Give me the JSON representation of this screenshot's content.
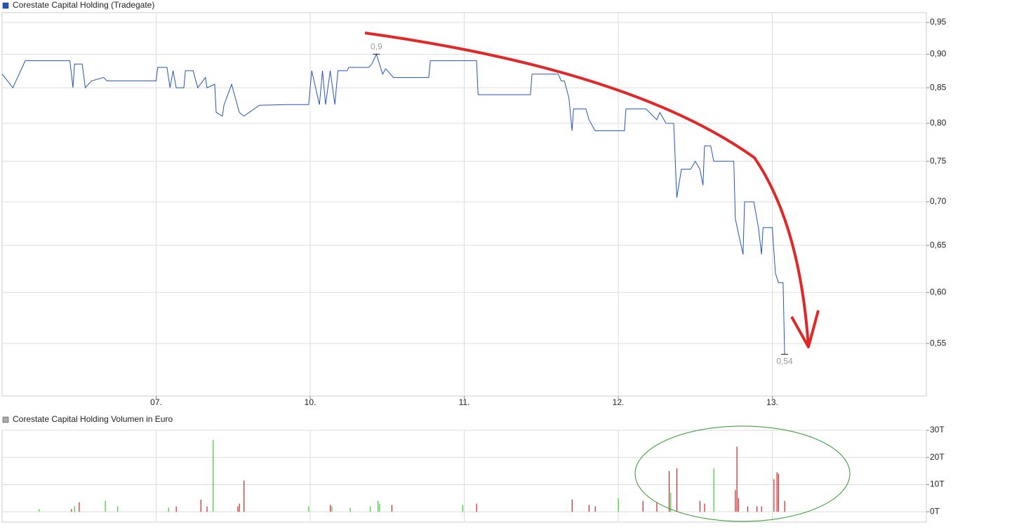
{
  "chart_data": [
    {
      "type": "line",
      "legend": "Corestate Capital Holding (Tradegate)",
      "log_scale": true,
      "grid": true,
      "xlim": [
        0,
        6
      ],
      "xticks": [
        {
          "value": 1,
          "label": "07."
        },
        {
          "value": 2,
          "label": "10."
        },
        {
          "value": 3,
          "label": "11."
        },
        {
          "value": 4,
          "label": "12."
        },
        {
          "value": 5,
          "label": "13."
        }
      ],
      "ylim": [
        0.503,
        0.966
      ],
      "yticks": [
        {
          "value": 0.55,
          "label": "0,55"
        },
        {
          "value": 0.6,
          "label": "0,60"
        },
        {
          "value": 0.65,
          "label": "0,65"
        },
        {
          "value": 0.7,
          "label": "0,70"
        },
        {
          "value": 0.75,
          "label": "0,75"
        },
        {
          "value": 0.8,
          "label": "0,80"
        },
        {
          "value": 0.85,
          "label": "0,85"
        },
        {
          "value": 0.9,
          "label": "0,90"
        },
        {
          "value": 0.95,
          "label": "0,95"
        }
      ],
      "max_label": "0,9",
      "min_label": "0,54",
      "series": [
        {
          "name": "Corestate Capital Holding (Tradegate)",
          "color": "#2256b8",
          "x": [
            0,
            0.07,
            0.15,
            0.44,
            0.46,
            0.47,
            0.52,
            0.54,
            0.58,
            0.66,
            0.68,
            1.0,
            1.01,
            1.07,
            1.09,
            1.11,
            1.13,
            1.18,
            1.19,
            1.24,
            1.27,
            1.32,
            1.33,
            1.38,
            1.39,
            1.43,
            1.44,
            1.49,
            1.54,
            1.57,
            1.67,
            1.85,
            1.99,
            2.01,
            2.06,
            2.08,
            2.1,
            2.13,
            2.16,
            2.18,
            2.24,
            2.25,
            2.38,
            2.4,
            2.43,
            2.47,
            2.49,
            2.54,
            2.77,
            2.78,
            3.08,
            3.09,
            3.43,
            3.44,
            3.61,
            3.63,
            3.65,
            3.68,
            3.7,
            3.71,
            3.79,
            3.81,
            3.85,
            4.04,
            4.05,
            4.18,
            4.25,
            4.27,
            4.31,
            4.36,
            4.38,
            4.41,
            4.47,
            4.5,
            4.53,
            4.55,
            4.56,
            4.6,
            4.62,
            4.75,
            4.76,
            4.81,
            4.82,
            4.88,
            4.91,
            4.93,
            4.94,
            5.0,
            5.02,
            5.04,
            5.07,
            5.08
          ],
          "values": [
            0.87,
            0.85,
            0.89,
            0.89,
            0.85,
            0.885,
            0.885,
            0.85,
            0.86,
            0.865,
            0.86,
            0.86,
            0.88,
            0.88,
            0.85,
            0.875,
            0.85,
            0.85,
            0.875,
            0.875,
            0.85,
            0.865,
            0.85,
            0.855,
            0.815,
            0.81,
            0.825,
            0.855,
            0.815,
            0.81,
            0.825,
            0.826,
            0.826,
            0.875,
            0.826,
            0.875,
            0.826,
            0.875,
            0.826,
            0.875,
            0.875,
            0.88,
            0.88,
            0.885,
            0.9,
            0.87,
            0.878,
            0.865,
            0.865,
            0.89,
            0.89,
            0.84,
            0.84,
            0.87,
            0.87,
            0.86,
            0.86,
            0.835,
            0.79,
            0.82,
            0.82,
            0.805,
            0.79,
            0.79,
            0.82,
            0.82,
            0.805,
            0.815,
            0.8,
            0.8,
            0.705,
            0.74,
            0.74,
            0.75,
            0.74,
            0.72,
            0.77,
            0.77,
            0.75,
            0.75,
            0.68,
            0.64,
            0.7,
            0.7,
            0.67,
            0.64,
            0.67,
            0.67,
            0.62,
            0.61,
            0.61,
            0.54
          ]
        }
      ]
    },
    {
      "type": "bar",
      "legend": "Corestate Capital Holding Volumen in Euro",
      "legend_color": "#aaaaaa",
      "grid": true,
      "xlim": [
        0,
        6
      ],
      "ylim": [
        -3.8,
        30
      ],
      "yticks": [
        {
          "value": 0,
          "label": "0T"
        },
        {
          "value": 10,
          "label": "10T"
        },
        {
          "value": 20,
          "label": "20T"
        },
        {
          "value": 30,
          "label": "30T"
        }
      ],
      "x": [
        0.24,
        0.45,
        0.47,
        0.5,
        0.67,
        0.75,
        1.08,
        1.13,
        1.29,
        1.33,
        1.37,
        1.53,
        1.54,
        1.57,
        1.99,
        2.13,
        2.14,
        2.26,
        2.39,
        2.44,
        2.45,
        2.53,
        2.99,
        3.08,
        3.7,
        3.81,
        3.85,
        4.0,
        4.16,
        4.25,
        4.33,
        4.34,
        4.38,
        4.53,
        4.56,
        4.62,
        4.76,
        4.77,
        4.78,
        4.84,
        4.9,
        4.93,
        5.01,
        5.03,
        5.04,
        5.08
      ],
      "values": [
        1,
        1,
        2,
        3.5,
        4,
        2,
        1.5,
        2,
        4.5,
        2,
        26.5,
        2,
        3,
        11.5,
        2,
        2.5,
        2,
        1.5,
        2,
        4,
        3,
        2.5,
        2.5,
        3,
        4.5,
        2.5,
        2,
        5,
        4,
        3.5,
        15,
        7,
        16,
        4,
        3,
        16,
        8,
        24,
        5,
        2,
        2,
        2,
        12,
        14.5,
        14,
        4
      ],
      "colors": [
        "#33cc33",
        "#cc2222",
        "#33cc33",
        "#cc2222",
        "#33cc33",
        "#33cc33",
        "#33cc33",
        "#cc2222",
        "#cc2222",
        "#cc2222",
        "#33cc33",
        "#cc2222",
        "#cc2222",
        "#cc2222",
        "#33cc33",
        "#cc2222",
        "#33cc33",
        "#33cc33",
        "#33cc33",
        "#33cc33",
        "#33cc33",
        "#cc2222",
        "#33cc33",
        "#cc2222",
        "#cc2222",
        "#cc2222",
        "#cc2222",
        "#33cc33",
        "#cc2222",
        "#cc2222",
        "#cc2222",
        "#33cc33",
        "#cc2222",
        "#cc2222",
        "#cc2222",
        "#33cc33",
        "#cc2222",
        "#cc2222",
        "#cc2222",
        "#cc2222",
        "#cc2222",
        "#cc2222",
        "#cc2222",
        "#cc2222",
        "#cc2222",
        "#cc2222"
      ]
    }
  ]
}
